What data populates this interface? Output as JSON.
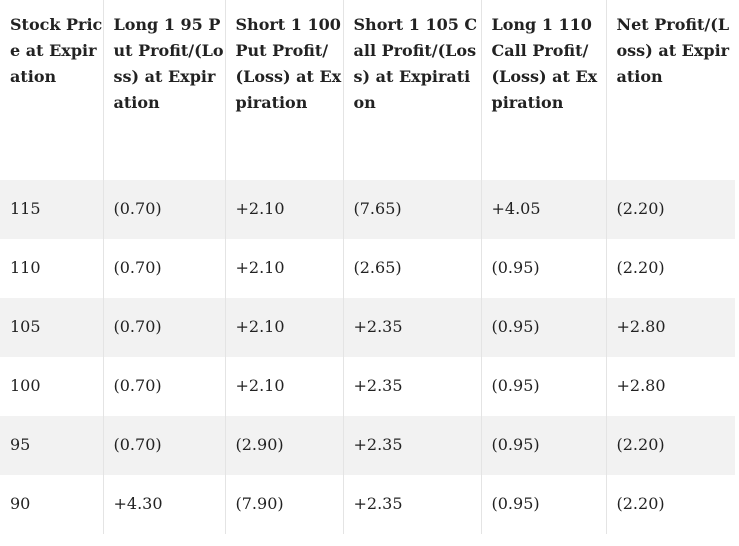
{
  "table": {
    "headers": [
      "Stock Price at Expiration",
      "Long 1 95 Put Profit/(Loss) at Expiration",
      "Short 1 100 Put Profit/(Loss) at Expiration",
      "Short 1 105 Call Profit/(Loss) at Expiration",
      "Long 1 110 Call Profit/(Loss) at Expiration",
      "Net Profit/(Loss) at Expiration"
    ],
    "rows": [
      [
        "115",
        "(0.70)",
        "+2.10",
        "(7.65)",
        "+4.05",
        "(2.20)"
      ],
      [
        "110",
        "(0.70)",
        "+2.10",
        "(2.65)",
        "(0.95)",
        "(2.20)"
      ],
      [
        "105",
        "(0.70)",
        "+2.10",
        "+2.35",
        "(0.95)",
        "+2.80"
      ],
      [
        "100",
        "(0.70)",
        "+2.10",
        "+2.35",
        "(0.95)",
        "+2.80"
      ],
      [
        "95",
        "(0.70)",
        "(2.90)",
        "+2.35",
        "(0.95)",
        "(2.20)"
      ],
      [
        "90",
        "+4.30",
        "(7.90)",
        "+2.35",
        "(0.95)",
        "(2.20)"
      ]
    ]
  }
}
